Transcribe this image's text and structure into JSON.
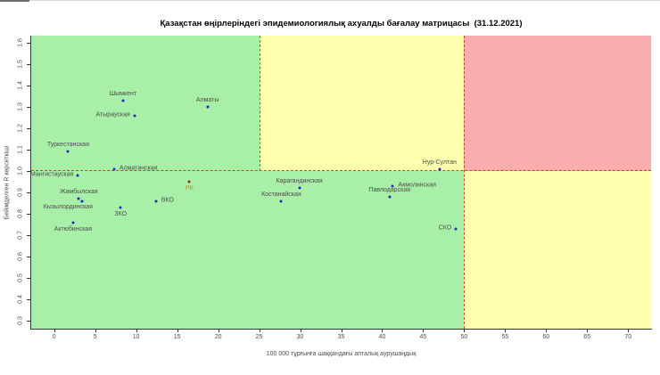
{
  "chart_data": {
    "type": "scatter",
    "title": "Қазақстан өңірлеріндегі эпидемиологиялық ахуалды бағалау матрицасы  (31.12.2021)",
    "xlabel": "100 000 тұрғынға шаққандағы апталық аурушаңдық",
    "ylabel": "Бейімделген R көрсеткіші",
    "xlim": [
      -2.8,
      72.8
    ],
    "ylim": [
      0.263,
      1.633
    ],
    "x_ticks": [
      "0",
      "5",
      "10",
      "15",
      "20",
      "25",
      "30",
      "35",
      "40",
      "45",
      "50",
      "55",
      "60",
      "65",
      "70"
    ],
    "y_ticks": [
      "0.3",
      "0.4",
      "0.5",
      "0.6",
      "0.7",
      "0.8",
      "0.9",
      "1.0",
      "1.1",
      "1.2",
      "1.3",
      "1.4",
      "1.5",
      "1.6"
    ],
    "grid": false,
    "legend": "none",
    "colors": {
      "green": "#a8f0a8",
      "yellow": "#ffffae",
      "red": "#f9adae",
      "dashed_line": "#bf4a26",
      "point_blue": "#2424c4",
      "point_rk": "#942e0e",
      "rk_label": "#c8833c",
      "label_text": "#4d4d4d"
    },
    "zones": [
      {
        "name": "green-top",
        "x": [
          -2.8,
          25
        ],
        "y": [
          1.0,
          1.633
        ],
        "color": "green"
      },
      {
        "name": "yellow-top",
        "x": [
          25,
          50
        ],
        "y": [
          1.0,
          1.633
        ],
        "color": "yellow"
      },
      {
        "name": "red-top",
        "x": [
          50,
          72.8
        ],
        "y": [
          1.0,
          1.633
        ],
        "color": "red"
      },
      {
        "name": "green-bottom",
        "x": [
          -2.8,
          50
        ],
        "y": [
          0.263,
          1.0
        ],
        "color": "green"
      },
      {
        "name": "yellow-bottom",
        "x": [
          50,
          72.8
        ],
        "y": [
          0.263,
          1.0
        ],
        "color": "yellow"
      }
    ],
    "lines": [
      {
        "name": "r-threshold-1.0",
        "orientation": "horizontal",
        "value": 1.0,
        "span": "full"
      },
      {
        "name": "incidence-25",
        "orientation": "vertical",
        "value": 25,
        "span": "above-threshold"
      },
      {
        "name": "incidence-50",
        "orientation": "vertical",
        "value": 50,
        "span": "full"
      }
    ],
    "points": [
      {
        "label": "Туркестанская",
        "x": 1.7,
        "y": 1.09,
        "color": "blue",
        "label_pos": "above"
      },
      {
        "label": "Шымкент",
        "x": 8.4,
        "y": 1.33,
        "color": "blue",
        "label_pos": "above"
      },
      {
        "label": "Атырауская",
        "x": 9.8,
        "y": 1.26,
        "color": "blue",
        "label_pos": "left"
      },
      {
        "label": "Алматы",
        "x": 18.7,
        "y": 1.3,
        "color": "blue",
        "label_pos": "above"
      },
      {
        "label": "Алматинская",
        "x": 7.3,
        "y": 1.01,
        "color": "blue",
        "label_pos": "right"
      },
      {
        "label": "Мангистауская",
        "x": 2.9,
        "y": 0.98,
        "color": "blue",
        "label_pos": "left"
      },
      {
        "label": "РК",
        "x": 16.5,
        "y": 0.95,
        "color": "rk",
        "label_pos": "below"
      },
      {
        "label": "Жамбылская",
        "x": 3.0,
        "y": 0.87,
        "color": "blue",
        "label_pos": "above"
      },
      {
        "label": "Кызылординская",
        "x": 3.4,
        "y": 0.86,
        "color": "blue",
        "label_pos": "below-left"
      },
      {
        "label": "ВКО",
        "x": 12.4,
        "y": 0.86,
        "color": "blue",
        "label_pos": "right"
      },
      {
        "label": "ЗКО",
        "x": 8.1,
        "y": 0.83,
        "color": "blue",
        "label_pos": "below"
      },
      {
        "label": "Актюбинская",
        "x": 2.3,
        "y": 0.76,
        "color": "blue",
        "label_pos": "below"
      },
      {
        "label": "Карагандинская",
        "x": 29.9,
        "y": 0.92,
        "color": "blue",
        "label_pos": "above"
      },
      {
        "label": "Костанайская",
        "x": 27.7,
        "y": 0.86,
        "color": "blue",
        "label_pos": "above"
      },
      {
        "label": "Павлодарская",
        "x": 40.9,
        "y": 0.88,
        "color": "blue",
        "label_pos": "above"
      },
      {
        "label": "Акмолинская",
        "x": 41.3,
        "y": 0.93,
        "color": "blue",
        "label_pos": "right"
      },
      {
        "label": "Нур-Султан",
        "x": 47.0,
        "y": 1.01,
        "color": "blue",
        "label_pos": "above"
      },
      {
        "label": "СКО",
        "x": 49.0,
        "y": 0.73,
        "color": "blue",
        "label_pos": "left"
      }
    ]
  }
}
